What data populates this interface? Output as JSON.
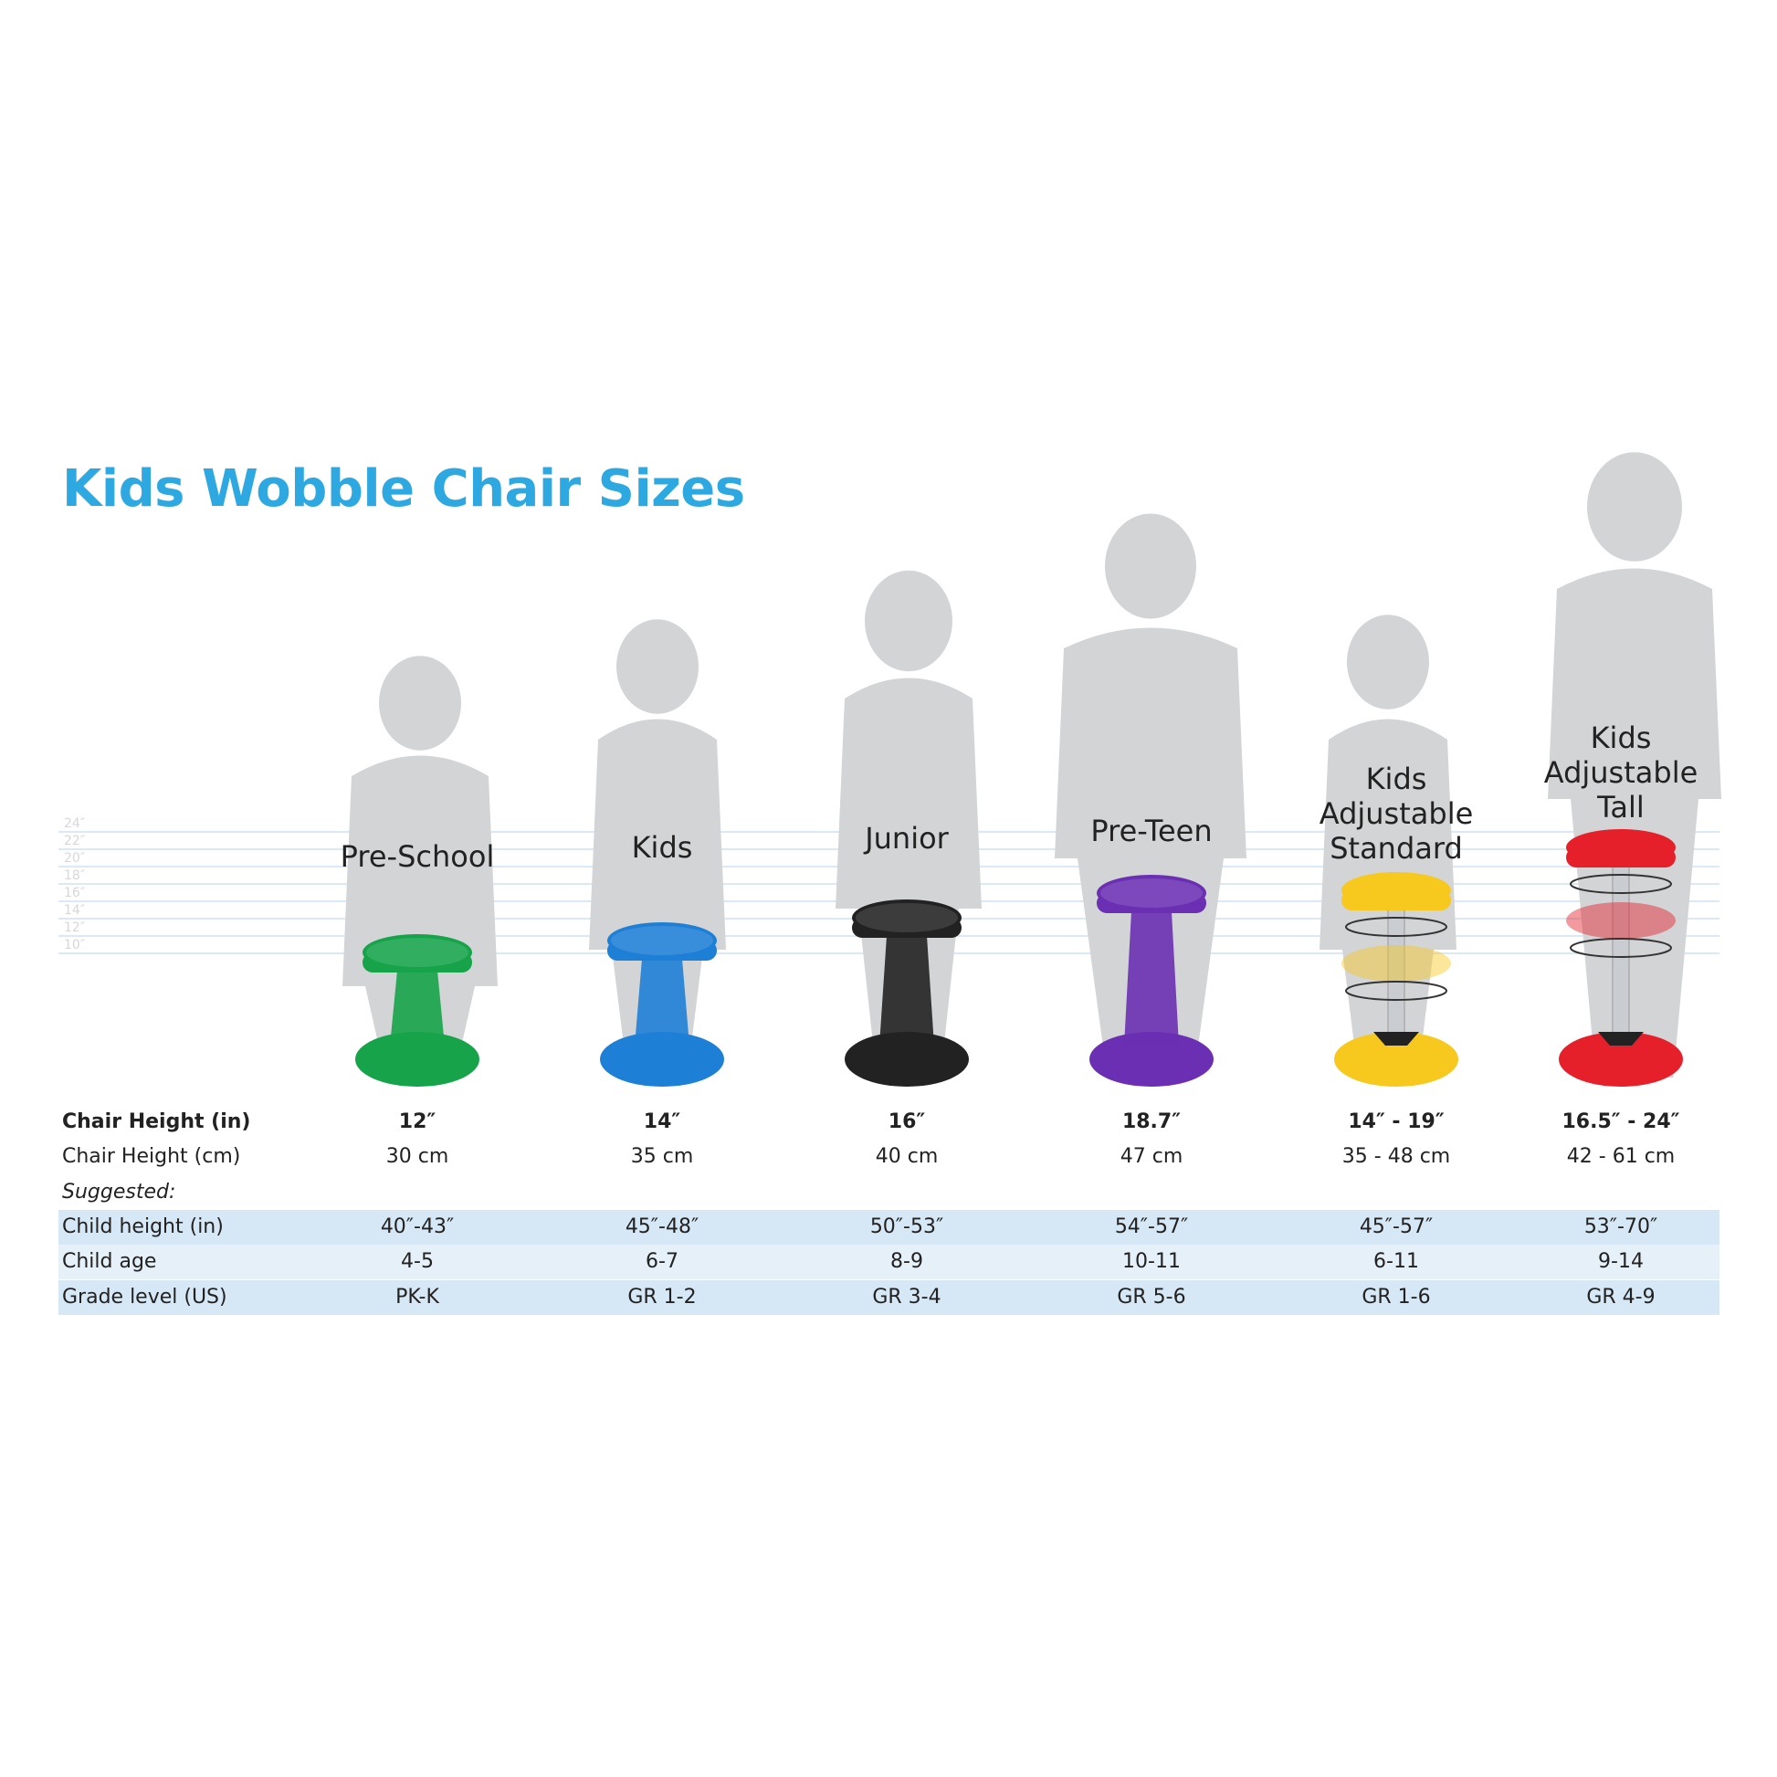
{
  "title": "Kids Wobble Chair Sizes",
  "scale_labels": [
    "24″",
    "22″",
    "20″",
    "18″",
    "16″",
    "14″",
    "12″",
    "10″"
  ],
  "products": [
    {
      "name": "Pre-School",
      "color": "#16a34a",
      "chair_height_in": "12″",
      "chair_height_cm": "30 cm",
      "child_height_in": "40″-43″",
      "child_age": "4-5",
      "grade_level": "PK-K"
    },
    {
      "name": "Kids",
      "color": "#1e7fd6",
      "chair_height_in": "14″",
      "chair_height_cm": "35 cm",
      "child_height_in": "45″-48″",
      "child_age": "6-7",
      "grade_level": "GR 1-2"
    },
    {
      "name": "Junior",
      "color": "#222222",
      "chair_height_in": "16″",
      "chair_height_cm": "40 cm",
      "child_height_in": "50″-53″",
      "child_age": "8-9",
      "grade_level": "GR 3-4"
    },
    {
      "name": "Pre-Teen",
      "color": "#6a2fb3",
      "chair_height_in": "18.7″",
      "chair_height_cm": "47 cm",
      "child_height_in": "54″-57″",
      "child_age": "10-11",
      "grade_level": "GR 5-6"
    },
    {
      "name_lines": [
        "Kids",
        "Adjustable",
        "Standard"
      ],
      "color": "#f7c81e",
      "chair_height_in": "14″ - 19″",
      "chair_height_cm": "35 - 48 cm",
      "child_height_in": "45″-57″",
      "child_age": "6-11",
      "grade_level": "GR 1-6"
    },
    {
      "name_lines": [
        "Kids",
        "Adjustable",
        "Tall"
      ],
      "color": "#e5202a",
      "chair_height_in": "16.5″ - 24″",
      "chair_height_cm": "42 - 61 cm",
      "child_height_in": "53″-70″",
      "child_age": "9-14",
      "grade_level": "GR 4-9"
    }
  ],
  "rows": {
    "chair_height_in": "Chair Height (in)",
    "chair_height_cm": "Chair Height (cm)",
    "suggested": "Suggested:",
    "child_height_in": "Child height (in)",
    "child_age": "Child age",
    "grade_level": "Grade level (US)"
  },
  "colors": {
    "title": "#2ea8e0",
    "silhouette": "#d3d4d6",
    "row_shade": "#d6e8f6",
    "scale_line": "#dbe9f7"
  }
}
